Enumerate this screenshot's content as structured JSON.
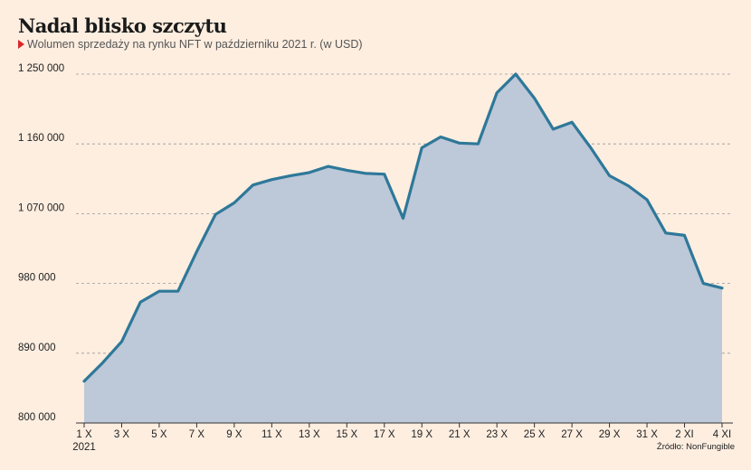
{
  "title": "Nadal blisko szczytu",
  "subtitle": "Wolumen sprzedaży na rynku NFT w październiku 2021 r. (w USD)",
  "source": "Źródło: NonFungible",
  "colors": {
    "background": "#fdeee0",
    "line": "#2e7899",
    "area": "#bdc8d8",
    "grid": "#999999",
    "accent": "#d9262c"
  },
  "chart_data": {
    "type": "area",
    "title": "Nadal blisko szczytu",
    "subtitle": "Wolumen sprzedaży na rynku NFT w październiku 2021 r. (w USD)",
    "xlabel": "",
    "ylabel": "",
    "ylim": [
      800000,
      1250000
    ],
    "yticks": [
      800000,
      890000,
      980000,
      1070000,
      1160000,
      1250000
    ],
    "ytick_labels": [
      "800 000",
      "890 000",
      "980 000",
      "1 070 000",
      "1 160 000",
      "1 250 000"
    ],
    "x_labels": [
      {
        "index": 0,
        "label": "1 X",
        "sublabel": "2021"
      },
      {
        "index": 2,
        "label": "3 X"
      },
      {
        "index": 4,
        "label": "5 X"
      },
      {
        "index": 6,
        "label": "7 X"
      },
      {
        "index": 8,
        "label": "9 X"
      },
      {
        "index": 10,
        "label": "11 X"
      },
      {
        "index": 12,
        "label": "13 X"
      },
      {
        "index": 14,
        "label": "15 X"
      },
      {
        "index": 16,
        "label": "17 X"
      },
      {
        "index": 18,
        "label": "19 X"
      },
      {
        "index": 20,
        "label": "21 X"
      },
      {
        "index": 22,
        "label": "23 X"
      },
      {
        "index": 24,
        "label": "25 X"
      },
      {
        "index": 26,
        "label": "27 X"
      },
      {
        "index": 28,
        "label": "29 X"
      },
      {
        "index": 30,
        "label": "31 X"
      },
      {
        "index": 32,
        "label": "2 XI"
      },
      {
        "index": 34,
        "label": "4 XI"
      }
    ],
    "x": [
      "1 X",
      "2 X",
      "3 X",
      "4 X",
      "5 X",
      "6 X",
      "7 X",
      "8 X",
      "9 X",
      "10 X",
      "11 X",
      "12 X",
      "13 X",
      "14 X",
      "15 X",
      "16 X",
      "17 X",
      "18 X",
      "19 X",
      "20 X",
      "21 X",
      "22 X",
      "23 X",
      "24 X",
      "25 X",
      "26 X",
      "27 X",
      "28 X",
      "29 X",
      "30 X",
      "31 X",
      "1 XI",
      "2 XI",
      "3 XI",
      "4 XI"
    ],
    "values": [
      854000,
      878000,
      905000,
      956000,
      970000,
      970000,
      1021000,
      1069000,
      1084000,
      1107000,
      1114000,
      1119000,
      1123000,
      1131000,
      1126000,
      1122000,
      1121000,
      1064000,
      1155000,
      1169000,
      1161000,
      1160000,
      1226000,
      1250000,
      1219000,
      1179000,
      1188000,
      1155000,
      1119000,
      1106000,
      1088000,
      1045000,
      1042000,
      980000,
      974000
    ],
    "grid": true,
    "legend": "none"
  }
}
